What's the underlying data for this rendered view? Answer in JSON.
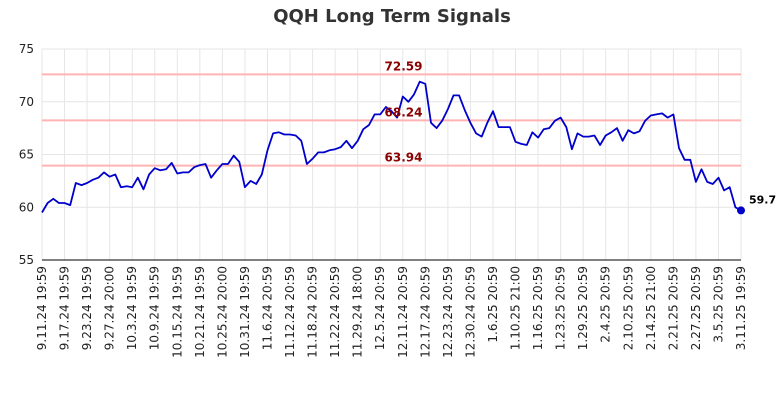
{
  "chart_data": {
    "type": "line",
    "title": "QQH Long Term Signals",
    "xlabel": "",
    "ylabel": "",
    "ylim": [
      55,
      75
    ],
    "yticks": [
      55,
      60,
      65,
      70,
      75
    ],
    "grid": true,
    "colors": {
      "line": "#0000cc",
      "ref_line": "#ffb3b3",
      "ref_label": "#8b0000",
      "grid": "#e6e6e6"
    },
    "x_tick_labels": [
      "9.11.24 19:59",
      "9.17.24 19:59",
      "9.23.24 19:59",
      "9.27.24 20:00",
      "10.3.24 19:59",
      "10.9.24 19:59",
      "10.15.24 19:59",
      "10.21.24 19:59",
      "10.25.24 20:00",
      "10.31.24 19:59",
      "11.6.24 20:59",
      "11.12.24 20:59",
      "11.18.24 20:59",
      "11.22.24 20:59",
      "11.29.24 18:00",
      "12.5.24 20:59",
      "12.11.24 20:59",
      "12.17.24 20:59",
      "12.23.24 20:59",
      "12.30.24 20:59",
      "1.6.25 20:59",
      "1.10.25 21:00",
      "1.16.25 20:59",
      "1.23.25 20:59",
      "1.29.25 20:59",
      "2.4.25 20:59",
      "2.10.25 20:59",
      "2.14.25 21:00",
      "2.21.25 20:59",
      "2.27.25 20:59",
      "3.5.25 20:59",
      "3.11.25 19:59"
    ],
    "reference_lines": [
      {
        "value": 72.59,
        "label": "72.59"
      },
      {
        "value": 68.24,
        "label": "68.24"
      },
      {
        "value": 63.94,
        "label": "63.94"
      }
    ],
    "last_value_label": "59.7",
    "series": [
      {
        "values": [
          59.5,
          60.4,
          60.8,
          60.4,
          60.4,
          60.2,
          62.3,
          62.1,
          62.3,
          62.6,
          62.8,
          63.3,
          62.9,
          63.1,
          61.9,
          62.0,
          61.9,
          62.8,
          61.7,
          63.1,
          63.7,
          63.5,
          63.6,
          64.2,
          63.2,
          63.3,
          63.3,
          63.8,
          64.0,
          64.1,
          62.8,
          63.5,
          64.1,
          64.1,
          64.9,
          64.3,
          61.9,
          62.5,
          62.2,
          63.1,
          65.4,
          67.0,
          67.1,
          66.9,
          66.9,
          66.8,
          66.3,
          64.1,
          64.6,
          65.2,
          65.2,
          65.4,
          65.5,
          65.7,
          66.3,
          65.6,
          66.3,
          67.4,
          67.8,
          68.8,
          68.8,
          69.5,
          69.1,
          68.5,
          70.5,
          70.0,
          70.7,
          71.9,
          71.7,
          68.0,
          67.5,
          68.2,
          69.3,
          70.6,
          70.6,
          69.2,
          68.0,
          67.0,
          66.7,
          68.0,
          69.1,
          67.6,
          67.6,
          67.6,
          66.2,
          66.0,
          65.9,
          67.1,
          66.6,
          67.4,
          67.5,
          68.2,
          68.5,
          67.6,
          65.5,
          67.0,
          66.7,
          66.7,
          66.8,
          65.9,
          66.8,
          67.1,
          67.5,
          66.3,
          67.3,
          67.0,
          67.2,
          68.2,
          68.7,
          68.8,
          68.9,
          68.5,
          68.8,
          65.6,
          64.5,
          64.5,
          62.4,
          63.6,
          62.4,
          62.2,
          62.8,
          61.6,
          61.9,
          60.0,
          59.7
        ]
      }
    ]
  }
}
